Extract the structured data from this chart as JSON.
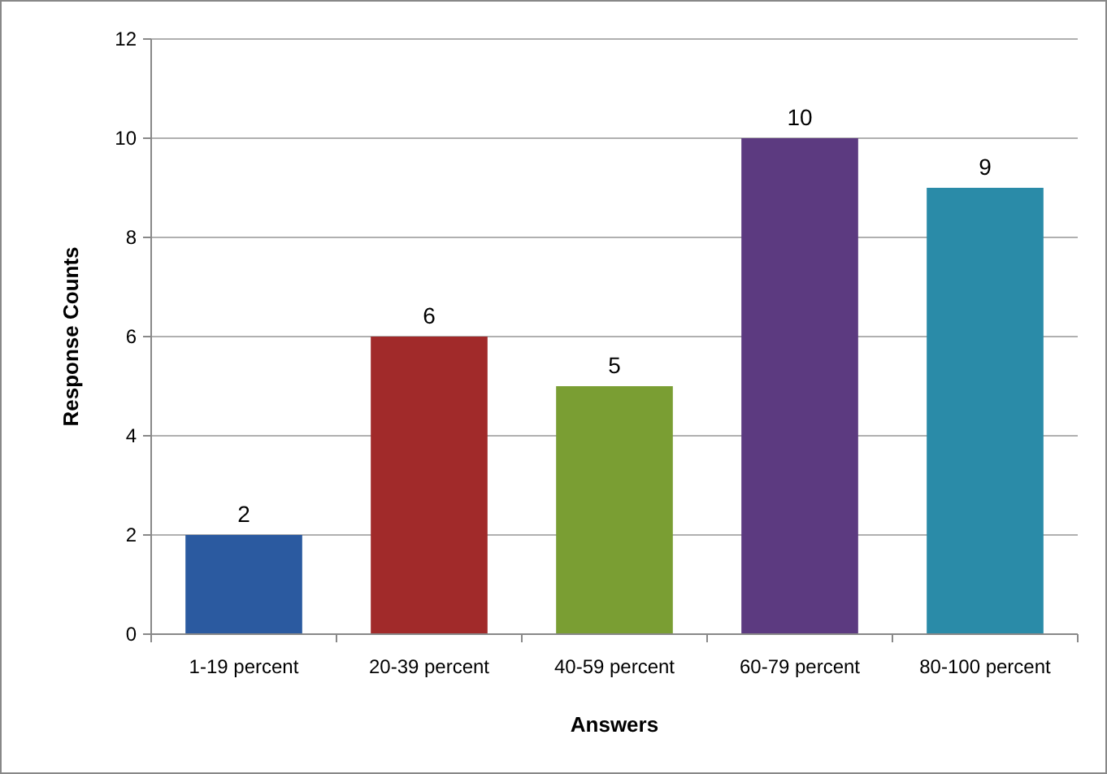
{
  "chart_data": {
    "type": "bar",
    "xlabel": "Answers",
    "ylabel": "Response Counts",
    "categories": [
      "1-19 percent",
      "20-39 percent",
      "40-59 percent",
      "60-79 percent",
      "80-100 percent"
    ],
    "values": [
      2,
      6,
      5,
      10,
      9
    ],
    "colors": [
      "#2b5aa0",
      "#a12a2a",
      "#7a9e33",
      "#5c3a80",
      "#2a8ba8"
    ],
    "ylim": [
      0,
      12
    ],
    "yticks": [
      0,
      2,
      4,
      6,
      8,
      10,
      12
    ],
    "grid": "y",
    "data_labels": true
  }
}
